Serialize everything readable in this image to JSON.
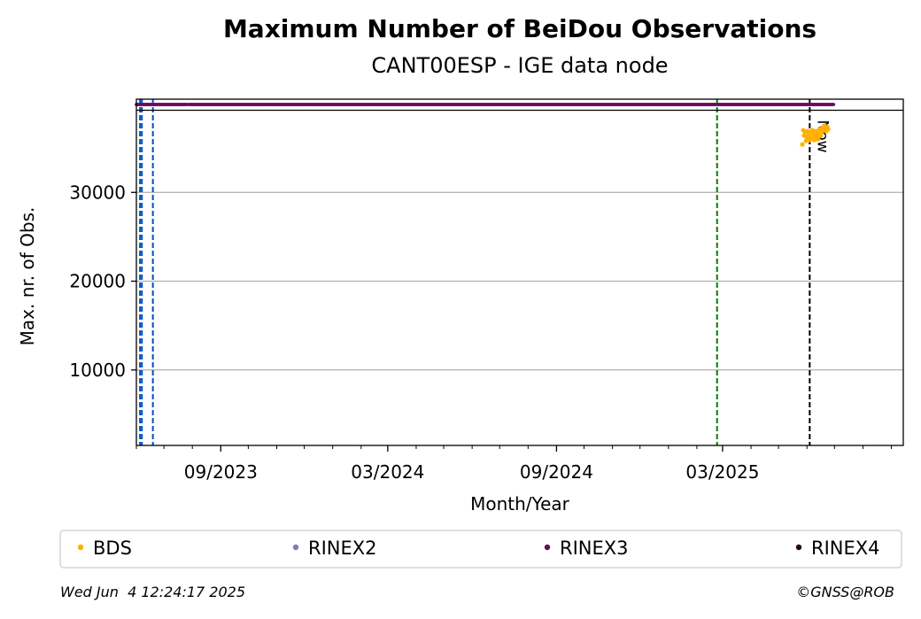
{
  "chart_data": {
    "type": "scatter",
    "title": "Maximum Number of BeiDou Observations",
    "subtitle": "CANT00ESP - IGE data node",
    "xlabel": "Month/Year",
    "ylabel": "Max. nr. of Obs.",
    "xlim": [
      "2023-06-01",
      "2025-09-14"
    ],
    "ylim": [
      1500,
      40500
    ],
    "x_ticks": [
      "2023-09-01",
      "2024-03-01",
      "2024-09-01",
      "2025-03-01"
    ],
    "x_tick_labels": [
      "09/2023",
      "03/2024",
      "09/2024",
      "03/2025"
    ],
    "y_ticks": [
      10000,
      20000,
      30000
    ],
    "y_tick_labels": [
      "10000",
      "20000",
      "30000"
    ],
    "grid": "horizontal",
    "series": [
      {
        "name": "BDS",
        "color": "#ffb000",
        "points": [
          [
            "2025-05-27",
            35400
          ],
          [
            "2025-05-28",
            37000
          ],
          [
            "2025-05-29",
            36400
          ],
          [
            "2025-05-30",
            36800
          ],
          [
            "2025-05-31",
            35800
          ],
          [
            "2025-06-01",
            36200
          ],
          [
            "2025-06-02",
            36900
          ],
          [
            "2025-06-03",
            36500
          ],
          [
            "2025-06-04",
            35900
          ],
          [
            "2025-06-05",
            36100
          ],
          [
            "2025-06-06",
            36700
          ],
          [
            "2025-06-07",
            37000
          ],
          [
            "2025-06-08",
            36300
          ],
          [
            "2025-06-09",
            35900
          ],
          [
            "2025-06-10",
            36500
          ],
          [
            "2025-06-11",
            36900
          ],
          [
            "2025-06-12",
            36200
          ],
          [
            "2025-06-13",
            36000
          ],
          [
            "2025-06-14",
            36600
          ],
          [
            "2025-06-15",
            37100
          ],
          [
            "2025-06-16",
            36400
          ],
          [
            "2025-06-17",
            36800
          ],
          [
            "2025-06-18",
            37300
          ],
          [
            "2025-06-19",
            37000
          ],
          [
            "2025-06-20",
            37500
          ],
          [
            "2025-06-21",
            37200
          ],
          [
            "2025-06-22",
            36900
          ],
          [
            "2025-06-23",
            37400
          ],
          [
            "2025-06-24",
            37100
          ]
        ]
      }
    ],
    "format_strip": {
      "series": [
        {
          "name": "RINEX2",
          "color": "#7b7bb8",
          "segments": []
        },
        {
          "name": "RINEX3",
          "color": "#6a0a5f",
          "segments": [
            [
              "2023-06-01",
              "2023-07-26"
            ],
            [
              "2023-07-28",
              "2025-02-22"
            ],
            [
              "2025-02-24",
              "2025-06-30"
            ]
          ]
        },
        {
          "name": "RINEX4",
          "color": "#22061a",
          "segments": []
        }
      ]
    },
    "vertical_lines": [
      {
        "date": "2023-06-05",
        "color": "#0050c0",
        "style": "dashed"
      },
      {
        "date": "2023-06-07",
        "color": "#0050c0",
        "style": "dashed"
      },
      {
        "date": "2023-06-19",
        "color": "#0050c0",
        "style": "dashed"
      },
      {
        "date": "2025-02-23",
        "color": "#008000",
        "style": "dashed"
      },
      {
        "date": "2025-06-04",
        "color": "#000000",
        "style": "dashed",
        "label": "Now"
      }
    ],
    "legend": {
      "placement": "bottom",
      "entries": [
        {
          "name": "BDS",
          "color": "#ffb000"
        },
        {
          "name": "RINEX2",
          "color": "#7b7bb8"
        },
        {
          "name": "RINEX3",
          "color": "#6a0a5f"
        },
        {
          "name": "RINEX4",
          "color": "#22061a"
        }
      ]
    }
  },
  "footer": {
    "timestamp": "Wed Jun  4 12:24:17 2025",
    "credit": "©GNSS@ROB"
  }
}
